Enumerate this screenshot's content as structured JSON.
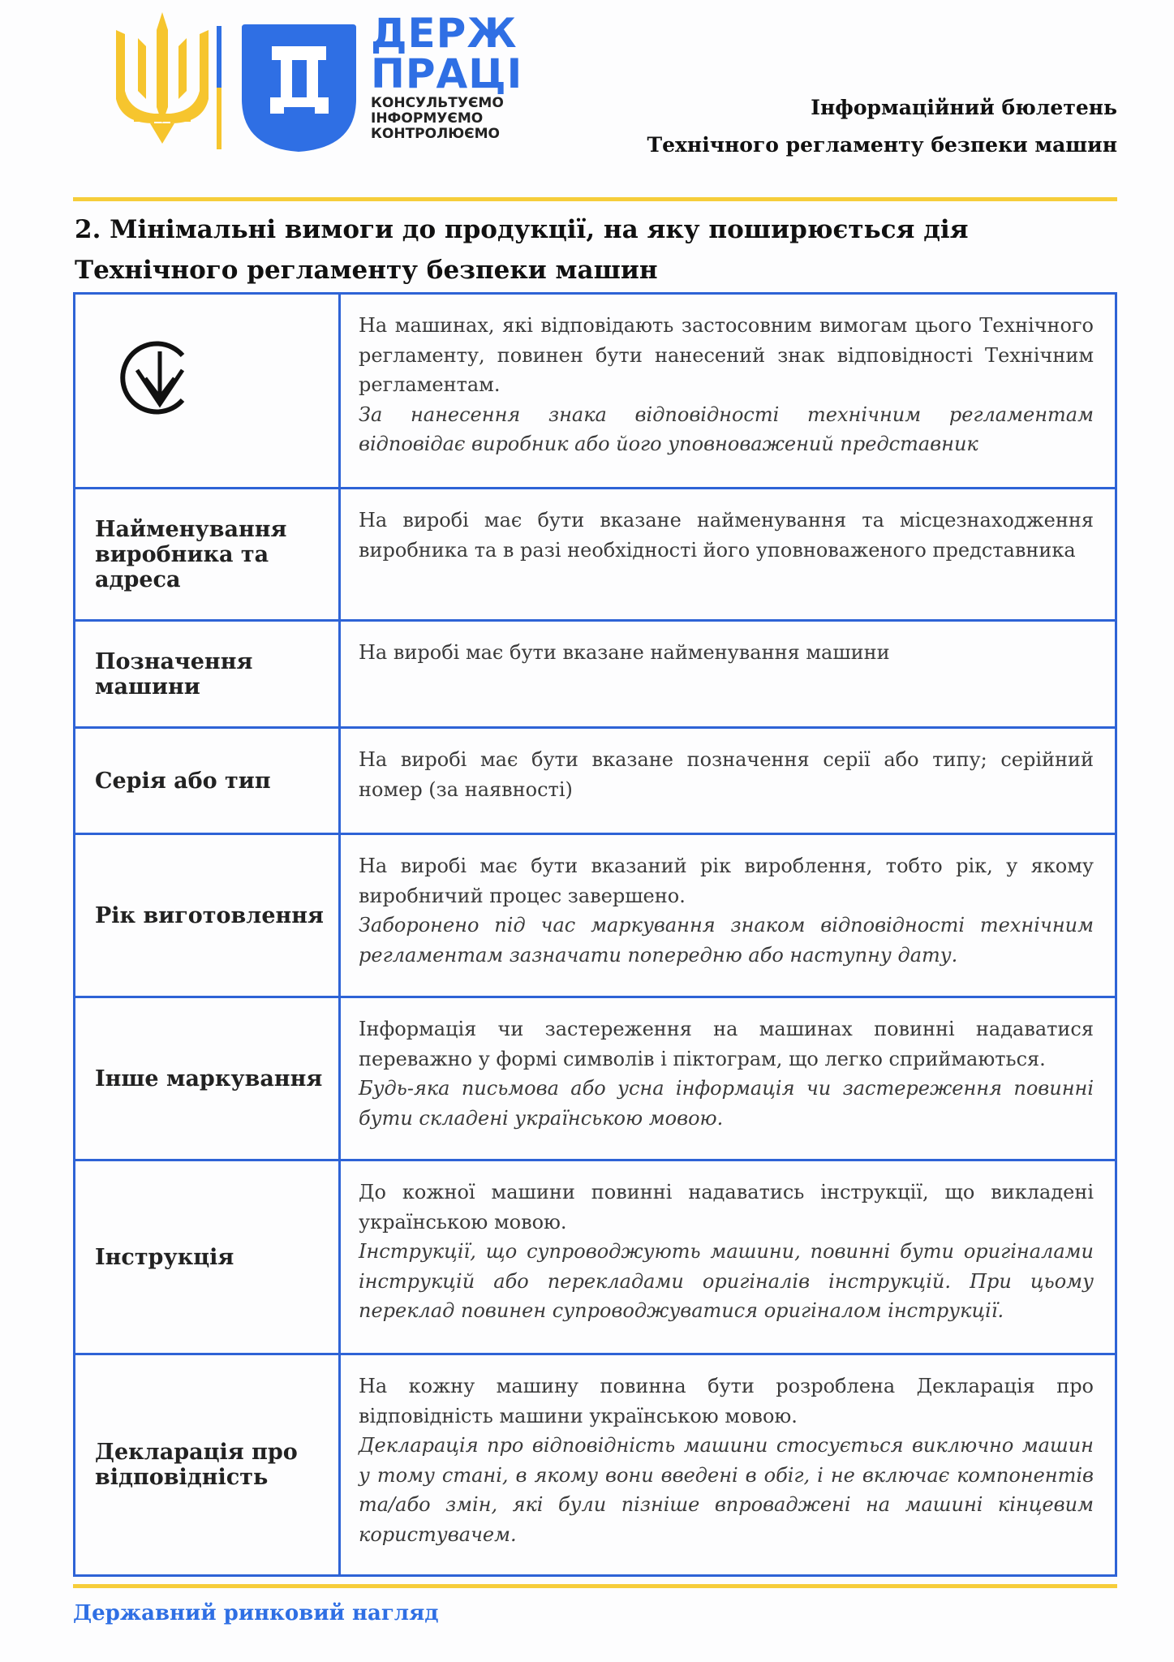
{
  "header": {
    "logo": {
      "brand_line1": "ДЕРЖ",
      "brand_line2": "ПРАЦІ",
      "tagline": [
        "КОНСУЛЬТУЄМО",
        "ІНФОРМУЄМО",
        "КОНТРОЛЮЄМО"
      ]
    },
    "bulletin_line1": "Інформаційний бюлетень",
    "bulletin_line2": "Технічного регламенту безпеки машин"
  },
  "section": {
    "title_line1": "2. Мінімальні вимоги до продукції, на яку поширюється дія",
    "title_line2": "Технічного регламенту безпеки машин"
  },
  "table": {
    "rows": [
      {
        "label": "",
        "icon": "conformity-mark-icon",
        "text": "На машинах, які відповідають застосовним вимогам цього Технічного регламенту, повинен бути нанесений знак відповідності Технічним регламентам.",
        "note": "За нанесення знака відповідності технічним регламентам відповідає виробник або його уповноважений представник"
      },
      {
        "label": "Найменування виробника та адреса",
        "text": "На виробі має бути вказане найменування та місцезнаходження виробника та в разі необхідності його уповноваженого представника",
        "note": ""
      },
      {
        "label": "Позначення машини",
        "text": "На виробі має бути вказане найменування машини",
        "note": ""
      },
      {
        "label": "Серія або тип",
        "text": "На виробі має бути вказане позначення серії або типу; серійний номер (за наявності)",
        "note": ""
      },
      {
        "label": "Рік виготовлення",
        "text": "На виробі має бути вказаний рік вироблення, тобто рік, у якому виробничий процес завершено.",
        "note": "Заборонено під час маркування знаком відповідності технічним регламентам зазначати попередню або наступну дату."
      },
      {
        "label": "Інше маркування",
        "text": "Інформація чи застереження на машинах повинні надаватися переважно у формі символів і піктограм, що легко сприймаються.",
        "note": "Будь-яка письмова або усна інформація чи застереження повинні бути складені українською мовою."
      },
      {
        "label": "Інструкція",
        "text": "До кожної машини повинні надаватись інструкції, що викладені українською мовою.",
        "note": "Інструкції, що супроводжують машини, повинні бути оригіналами інструкцій або перекладами оригіналів інструкцій. При цьому переклад повинен супроводжуватися оригіналом інструкції."
      },
      {
        "label": "Декларація про відповідність",
        "text": "На кожну машину повинна бути розроблена Декларація про відповідність машини українською мовою.",
        "note": "Декларація про відповідність машини стосується виключно машин у тому стані, в якому вони введені в обіг, і не включає компонентів та/або змін, які були пізніше впроваджені на машині кінцевим користувачем."
      }
    ]
  },
  "footer": {
    "text": "Державний ринковий нагляд"
  },
  "colors": {
    "accent_blue": "#2f6fe4",
    "border_blue": "#2e63d6",
    "accent_yellow": "#f6cd3a"
  }
}
